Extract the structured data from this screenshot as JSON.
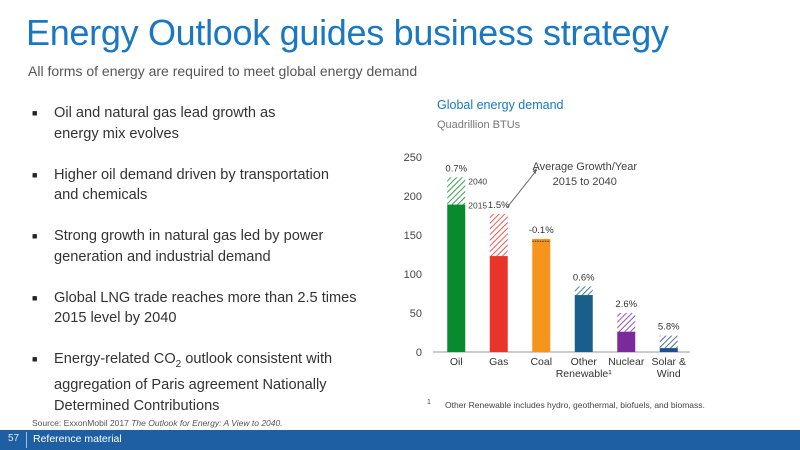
{
  "title": "Energy Outlook guides business strategy",
  "subtitle": "All forms of energy are required to meet global energy demand",
  "bullets": [
    "Oil and natural gas lead growth as\nenergy mix evolves",
    "Higher oil demand driven by transportation\nand chemicals",
    "Strong growth in natural gas led by power\ngeneration and industrial demand",
    "Global LNG trade reaches more than 2.5 times\n2015 level by 2040",
    {
      "before": "Energy-related CO",
      "sub": "2",
      "after": " outlook consistent with\naggregation of Paris agreement Nationally\nDetermined Contributions"
    }
  ],
  "bullet_glyph": "■",
  "source": {
    "prefix": "Source: ExxonMobil 2017 ",
    "title": "The Outlook for Energy: A View to 2040."
  },
  "footer": {
    "page": "57",
    "label": "Reference material"
  },
  "colors": {
    "accent": "#1a78c2",
    "footer_bar": "#1e5fa3"
  },
  "chart_data": {
    "type": "bar",
    "title": "Global energy demand",
    "subtitle": "Quadrillion BTUs",
    "categories": [
      "Oil",
      "Gas",
      "Coal",
      "Other\nRenewable¹",
      "Nuclear",
      "Solar &\nWind"
    ],
    "series": [
      {
        "name": "2015",
        "values": [
          189,
          123,
          145,
          73,
          26,
          5
        ],
        "fill": "solid"
      },
      {
        "name": "2040",
        "values": [
          224,
          177,
          142,
          84,
          50,
          21
        ],
        "fill": "hatched"
      }
    ],
    "growth_labels": [
      "0.7%",
      "1.5%",
      "-0.1%",
      "0.6%",
      "2.6%",
      "5.8%"
    ],
    "colors": [
      "#0a8a2e",
      "#e8342a",
      "#f7941d",
      "#1a5e8c",
      "#7b2a9c",
      "#1f4e8c"
    ],
    "ylim": [
      0,
      250
    ],
    "yticks": [
      0,
      50,
      100,
      150,
      200,
      250
    ],
    "annotation": "Average Growth/Year\n2015 to 2040",
    "footnote_mark": "1",
    "footnote": "Other Renewable includes hydro, geothermal, biofuels, and biomass."
  }
}
